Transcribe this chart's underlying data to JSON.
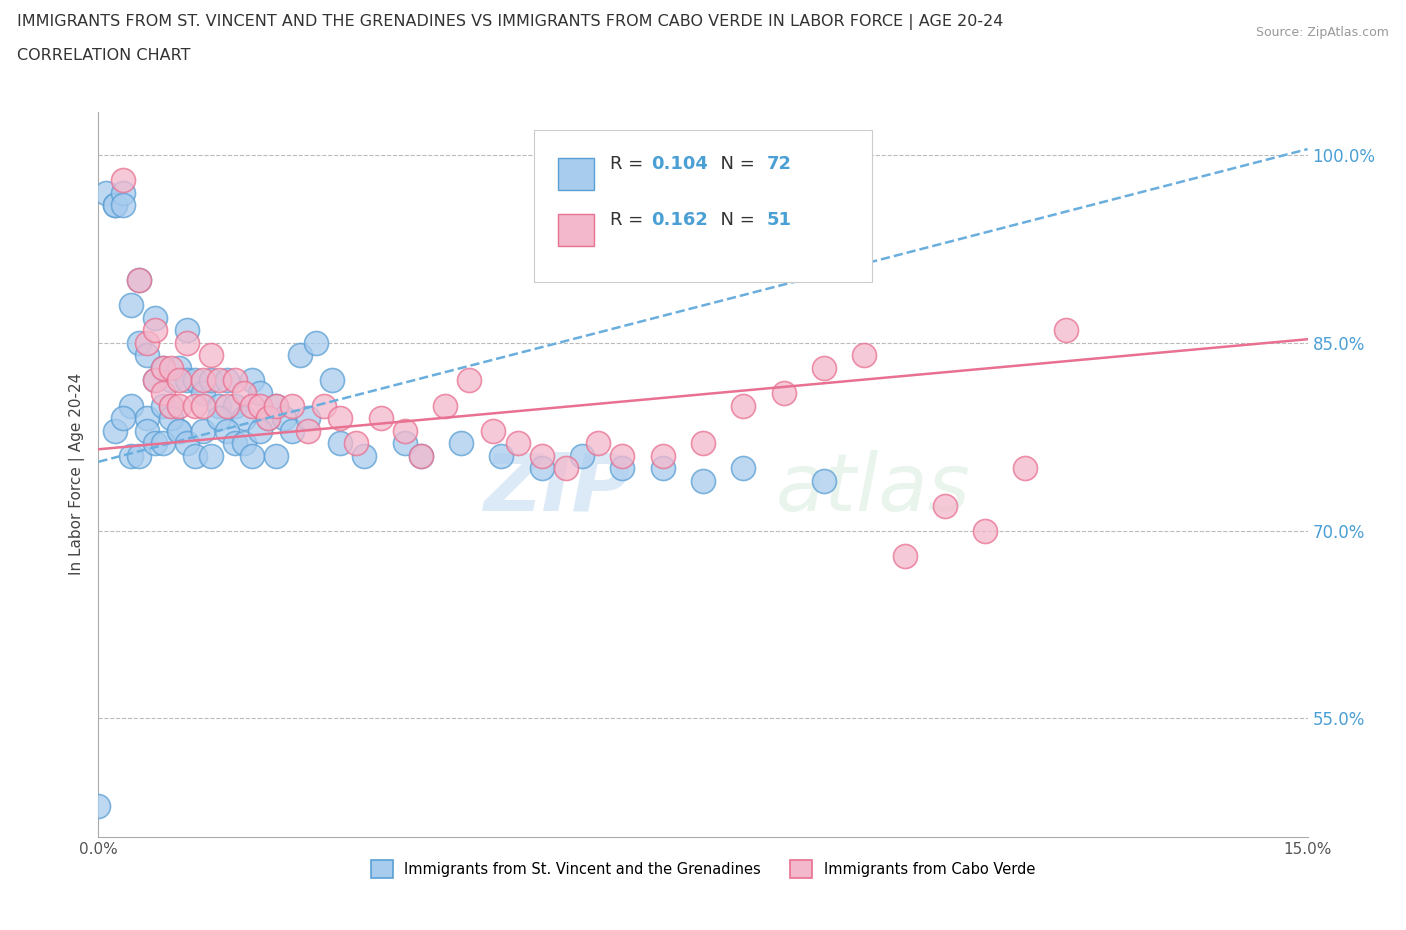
{
  "title": "IMMIGRANTS FROM ST. VINCENT AND THE GRENADINES VS IMMIGRANTS FROM CABO VERDE IN LABOR FORCE | AGE 20-24",
  "subtitle": "CORRELATION CHART",
  "source": "Source: ZipAtlas.com",
  "ylabel": "In Labor Force | Age 20-24",
  "xlim": [
    0.0,
    0.15
  ],
  "ylim": [
    0.455,
    1.035
  ],
  "yticks": [
    0.55,
    0.7,
    0.85,
    1.0
  ],
  "xticks": [
    0.0,
    0.15
  ],
  "watermark": "ZIPatlas",
  "color_blue": "#a8ccee",
  "color_pink": "#f4b8cc",
  "color_blue_edge": "#5a9fd4",
  "color_pink_edge": "#e87090",
  "color_trend_blue": "#6aaedd",
  "color_trend_pink": "#e87090",
  "color_ytick": "#4a9fd4",
  "legend_label1": "Immigrants from St. Vincent and the Grenadines",
  "legend_label2": "Immigrants from Cabo Verde",
  "blue_trend_x": [
    0.0,
    0.15
  ],
  "blue_trend_y": [
    0.755,
    1.005
  ],
  "pink_trend_x": [
    0.0,
    0.15
  ],
  "pink_trend_y": [
    0.765,
    0.853
  ],
  "bx": [
    0.001,
    0.002,
    0.002,
    0.003,
    0.003,
    0.004,
    0.004,
    0.005,
    0.005,
    0.006,
    0.006,
    0.007,
    0.007,
    0.008,
    0.008,
    0.009,
    0.009,
    0.01,
    0.01,
    0.011,
    0.011,
    0.012,
    0.013,
    0.014,
    0.015,
    0.016,
    0.017,
    0.018,
    0.019,
    0.02,
    0.021,
    0.022,
    0.023,
    0.025,
    0.027,
    0.029,
    0.002,
    0.003,
    0.004,
    0.005,
    0.006,
    0.007,
    0.008,
    0.009,
    0.01,
    0.011,
    0.012,
    0.013,
    0.014,
    0.015,
    0.016,
    0.017,
    0.018,
    0.019,
    0.02,
    0.022,
    0.024,
    0.026,
    0.03,
    0.033,
    0.038,
    0.04,
    0.045,
    0.05,
    0.055,
    0.06,
    0.065,
    0.07,
    0.075,
    0.08,
    0.09,
    0.0
  ],
  "by": [
    0.97,
    0.96,
    0.96,
    0.97,
    0.96,
    0.8,
    0.88,
    0.9,
    0.85,
    0.84,
    0.79,
    0.87,
    0.82,
    0.83,
    0.8,
    0.82,
    0.8,
    0.78,
    0.83,
    0.86,
    0.82,
    0.82,
    0.81,
    0.82,
    0.8,
    0.82,
    0.8,
    0.79,
    0.82,
    0.81,
    0.79,
    0.8,
    0.79,
    0.84,
    0.85,
    0.82,
    0.78,
    0.79,
    0.76,
    0.76,
    0.78,
    0.77,
    0.77,
    0.79,
    0.78,
    0.77,
    0.76,
    0.78,
    0.76,
    0.79,
    0.78,
    0.77,
    0.77,
    0.76,
    0.78,
    0.76,
    0.78,
    0.79,
    0.77,
    0.76,
    0.77,
    0.76,
    0.77,
    0.76,
    0.75,
    0.76,
    0.75,
    0.75,
    0.74,
    0.75,
    0.74,
    0.48
  ],
  "px": [
    0.003,
    0.005,
    0.006,
    0.007,
    0.007,
    0.008,
    0.008,
    0.009,
    0.009,
    0.01,
    0.01,
    0.011,
    0.012,
    0.013,
    0.013,
    0.014,
    0.015,
    0.016,
    0.017,
    0.018,
    0.019,
    0.02,
    0.021,
    0.022,
    0.024,
    0.026,
    0.028,
    0.03,
    0.032,
    0.035,
    0.038,
    0.04,
    0.043,
    0.046,
    0.049,
    0.052,
    0.055,
    0.058,
    0.062,
    0.065,
    0.07,
    0.075,
    0.08,
    0.085,
    0.09,
    0.095,
    0.1,
    0.105,
    0.11,
    0.115,
    0.12
  ],
  "py": [
    0.98,
    0.9,
    0.85,
    0.82,
    0.86,
    0.83,
    0.81,
    0.83,
    0.8,
    0.82,
    0.8,
    0.85,
    0.8,
    0.82,
    0.8,
    0.84,
    0.82,
    0.8,
    0.82,
    0.81,
    0.8,
    0.8,
    0.79,
    0.8,
    0.8,
    0.78,
    0.8,
    0.79,
    0.77,
    0.79,
    0.78,
    0.76,
    0.8,
    0.82,
    0.78,
    0.77,
    0.76,
    0.75,
    0.77,
    0.76,
    0.76,
    0.77,
    0.8,
    0.81,
    0.83,
    0.84,
    0.68,
    0.72,
    0.7,
    0.75,
    0.86
  ]
}
